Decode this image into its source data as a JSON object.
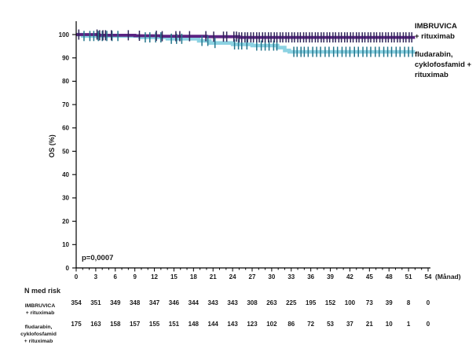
{
  "figure": {
    "p_value": "p=0,0007",
    "y_axis_label": "OS (%)",
    "x_axis_unit": "(Månad)"
  },
  "legend": {
    "series1_line1": "IMBRUVICA",
    "series1_line2": "+ rituximab",
    "series2_line1": "fludarabin,",
    "series2_line2": "cyklofosfamid +",
    "series2_line3": "rituximab"
  },
  "risk_table": {
    "title": "N med risk",
    "rows": [
      {
        "label_lines": [
          "IMBRUVICA",
          "+ rituximab"
        ],
        "counts": [
          354,
          351,
          349,
          348,
          347,
          346,
          344,
          343,
          343,
          308,
          263,
          225,
          195,
          152,
          100,
          73,
          39,
          8,
          0
        ]
      },
      {
        "label_lines": [
          "fludarabin,",
          "cyklofosfamid",
          "+ rituximab"
        ],
        "counts": [
          175,
          163,
          158,
          157,
          155,
          151,
          148,
          144,
          143,
          123,
          102,
          86,
          72,
          53,
          37,
          21,
          10,
          1,
          0
        ]
      }
    ]
  },
  "chart_data": {
    "type": "line",
    "subtype": "kaplan-meier-step",
    "title": "",
    "xlabel": "(Månad)",
    "ylabel": "OS (%)",
    "p_value": "p=0,0007",
    "xlim": [
      0,
      54
    ],
    "ylim": [
      0,
      105
    ],
    "grid": false,
    "legend_position": "right",
    "x_ticks": [
      0,
      3,
      6,
      9,
      12,
      15,
      18,
      21,
      24,
      27,
      30,
      33,
      36,
      39,
      42,
      45,
      48,
      51,
      54
    ],
    "y_ticks": [
      0,
      10,
      20,
      30,
      40,
      50,
      60,
      70,
      80,
      90,
      100
    ],
    "series": [
      {
        "name": "IMBRUVICA + rituximab",
        "color": "#5B2382",
        "censor_color": "#2E2458",
        "line_width": 3.8,
        "end_month": 52,
        "points": [
          [
            0,
            100
          ],
          [
            3.5,
            99.7
          ],
          [
            9,
            99.5
          ],
          [
            13,
            99.3
          ],
          [
            20,
            99.1
          ],
          [
            25,
            98.8
          ],
          [
            52,
            98.8
          ]
        ],
        "censor_months": [
          0.4,
          3.2,
          3.6,
          4.1,
          4.5,
          5.4,
          8.0,
          9.7,
          12.3,
          13.2,
          15.3,
          15.9,
          17.4,
          19.9,
          21.1,
          22.6,
          23.1,
          24.2,
          24.6,
          25.0,
          25.4,
          25.9,
          26.3,
          26.8,
          27.2,
          27.7,
          28.1,
          28.6,
          29.0,
          29.5,
          29.9,
          30.4,
          30.8,
          31.3,
          31.7,
          32.2,
          32.6,
          33.1,
          33.5,
          34.0,
          34.4,
          34.9,
          35.3,
          35.8,
          36.2,
          36.7,
          37.1,
          37.6,
          38.0,
          38.5,
          38.9,
          39.4,
          39.8,
          40.3,
          40.7,
          41.2,
          41.6,
          42.1,
          42.5,
          43.0,
          43.4,
          43.9,
          44.3,
          44.8,
          45.2,
          45.7,
          46.1,
          46.6,
          47.0,
          47.5,
          47.9,
          48.4,
          48.8,
          49.3,
          49.7,
          50.2,
          50.6,
          51.1,
          51.5
        ]
      },
      {
        "name": "fludarabin, cyklofosfamid + rituximab",
        "color": "#8CD2E2",
        "censor_color": "#23748B",
        "line_width": 4.6,
        "end_month": 52,
        "points": [
          [
            0,
            100
          ],
          [
            1,
            99.4
          ],
          [
            9.8,
            98.8
          ],
          [
            14,
            98.2
          ],
          [
            18.8,
            97.3
          ],
          [
            20.5,
            96.4
          ],
          [
            24,
            95.8
          ],
          [
            27,
            95.3
          ],
          [
            30.9,
            94.4
          ],
          [
            32,
            93.2
          ],
          [
            32.7,
            92.6
          ],
          [
            52,
            92.6
          ]
        ],
        "censor_months": [
          1.2,
          2.1,
          2.7,
          3.4,
          4.0,
          4.7,
          5.5,
          6.4,
          10.6,
          11.3,
          12.2,
          13.0,
          14.6,
          15.4,
          16.2,
          19.3,
          20.2,
          21.3,
          24.3,
          24.9,
          25.4,
          26.2,
          27.7,
          28.4,
          29.0,
          29.6,
          30.3,
          30.8,
          33.4,
          33.9,
          34.5,
          35.0,
          35.6,
          36.3,
          36.9,
          37.5,
          38.2,
          38.8,
          39.5,
          40.1,
          40.8,
          41.4,
          42.0,
          42.7,
          43.3,
          44.0,
          44.6,
          45.2,
          45.9,
          46.5,
          47.2,
          47.8,
          48.4,
          49.1,
          49.7,
          50.4,
          51.0,
          51.6
        ]
      }
    ]
  }
}
